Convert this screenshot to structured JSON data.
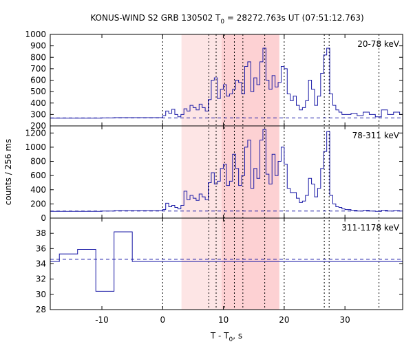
{
  "chart_data": {
    "type": "line",
    "title_main": "KONUS-WIND S2 GRB 130502 T",
    "title_sub": "0",
    "title_rest": " = 28272.763s UT (07:51:12.763)",
    "xlabel_main": "T - T",
    "xlabel_sub": "0",
    "xlabel_rest": ", s",
    "ylabel": "counts / 256 ms",
    "xlim": [
      -18.5,
      39.5
    ],
    "x_ticks": [
      -10,
      0,
      10,
      20,
      30
    ],
    "x_tick_labels": [
      "-10",
      "0",
      "10",
      "20",
      "30"
    ],
    "colors": {
      "series": "#1a1aa6",
      "shade_light": "#fde5e5",
      "shade_dark": "#fcc9cc",
      "vline": "#000000"
    },
    "shaded_regions": [
      {
        "x0": 3.1,
        "x1": 19.2,
        "kind": "light"
      },
      {
        "x0": 9.7,
        "x1": 19.2,
        "kind": "dark"
      }
    ],
    "vlines": [
      0.0,
      7.6,
      8.8,
      10.2,
      11.8,
      13.2,
      16.8,
      20.0,
      26.6,
      27.4,
      35.6
    ],
    "panels": [
      {
        "label": "20-78 keV",
        "ylim": [
          200,
          1000
        ],
        "y_ticks": [
          200,
          300,
          400,
          500,
          600,
          700,
          800,
          900,
          1000
        ],
        "y_tick_labels": [
          "200",
          "300",
          "400",
          "500",
          "600",
          "700",
          "800",
          "900",
          "1000"
        ],
        "background": 270,
        "x": [
          -18.5,
          -10,
          -8,
          0,
          0.5,
          1,
          1.5,
          2,
          2.5,
          3,
          3.5,
          4,
          4.5,
          5,
          5.5,
          6,
          6.5,
          7,
          7.5,
          8,
          8.5,
          9,
          9.5,
          10,
          10.5,
          11,
          11.5,
          12,
          12.5,
          13,
          13.5,
          14,
          14.5,
          15,
          15.5,
          16,
          16.5,
          17,
          17.5,
          18,
          18.5,
          19,
          19.5,
          20,
          20.5,
          21,
          21.5,
          22,
          22.5,
          23,
          23.5,
          24,
          24.5,
          25,
          25.5,
          26,
          26.5,
          27,
          27.5,
          28,
          28.5,
          29,
          29.5,
          30,
          31,
          32,
          33,
          34,
          35,
          36,
          37,
          38,
          39,
          39.5
        ],
        "y": [
          268,
          270,
          272,
          290,
          330,
          310,
          345,
          300,
          280,
          300,
          350,
          330,
          380,
          360,
          340,
          390,
          360,
          330,
          430,
          600,
          620,
          440,
          520,
          560,
          460,
          480,
          520,
          600,
          580,
          480,
          720,
          760,
          500,
          620,
          560,
          760,
          880,
          600,
          520,
          640,
          540,
          580,
          720,
          700,
          480,
          420,
          460,
          380,
          340,
          360,
          420,
          600,
          520,
          380,
          460,
          660,
          820,
          880,
          480,
          380,
          340,
          320,
          300,
          300,
          310,
          290,
          320,
          300,
          280,
          340,
          300,
          320,
          300,
          330
        ]
      },
      {
        "label": "78-311 keV",
        "ylim": [
          0,
          1300
        ],
        "y_ticks": [
          0,
          200,
          400,
          600,
          800,
          1000,
          1200
        ],
        "y_tick_labels": [
          "0",
          "200",
          "400",
          "600",
          "800",
          "1000",
          "1200"
        ],
        "background": 100,
        "x": [
          -18.5,
          -10,
          -8,
          0,
          0.5,
          1,
          1.5,
          2,
          2.5,
          3,
          3.5,
          4,
          4.5,
          5,
          5.5,
          6,
          6.5,
          7,
          7.5,
          8,
          8.5,
          9,
          9.5,
          10,
          10.5,
          11,
          11.5,
          12,
          12.5,
          13,
          13.5,
          14,
          14.5,
          15,
          15.5,
          16,
          16.5,
          17,
          17.5,
          18,
          18.5,
          19,
          19.5,
          20,
          20.5,
          21,
          21.5,
          22,
          22.5,
          23,
          23.5,
          24,
          24.5,
          25,
          25.5,
          26,
          26.5,
          27,
          27.5,
          28,
          28.5,
          29,
          29.5,
          30,
          31,
          32,
          33,
          34,
          35,
          36,
          37,
          38,
          39,
          39.5
        ],
        "y": [
          95,
          100,
          105,
          120,
          210,
          160,
          180,
          150,
          130,
          180,
          380,
          260,
          320,
          280,
          250,
          340,
          300,
          260,
          500,
          640,
          480,
          520,
          700,
          760,
          460,
          520,
          900,
          700,
          460,
          600,
          1000,
          1100,
          420,
          700,
          560,
          1100,
          1250,
          620,
          480,
          900,
          600,
          800,
          1000,
          760,
          420,
          360,
          360,
          280,
          220,
          240,
          320,
          560,
          480,
          300,
          420,
          700,
          940,
          1220,
          320,
          200,
          160,
          150,
          130,
          120,
          110,
          100,
          110,
          100,
          95,
          110,
          100,
          105,
          100,
          100
        ]
      },
      {
        "label": "311-1178 keV",
        "ylim": [
          28,
          40
        ],
        "y_ticks": [
          28,
          30,
          32,
          34,
          36,
          38
        ],
        "y_tick_labels": [
          "28",
          "30",
          "32",
          "34",
          "36",
          "38"
        ],
        "background": 34.6,
        "x": [
          -18.5,
          -17,
          -14,
          -11,
          -8,
          -5,
          -2
        ],
        "y": [
          34.3,
          35.3,
          35.9,
          30.4,
          38.2,
          34.3,
          34.3
        ]
      }
    ]
  }
}
